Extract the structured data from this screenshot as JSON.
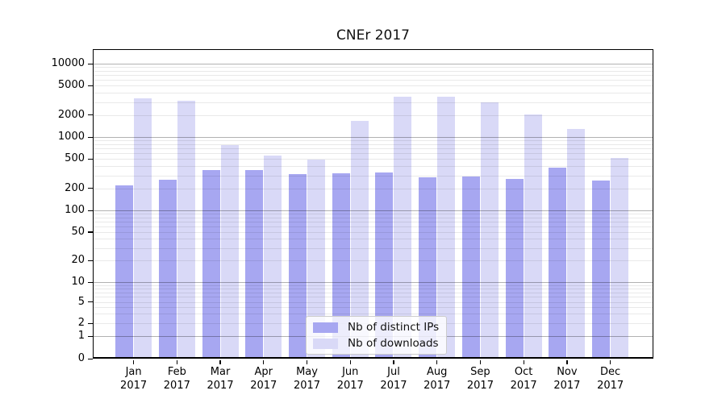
{
  "title": "CNEr 2017",
  "legend": {
    "items": [
      {
        "label": "Nb of distinct IPs",
        "color": "#a7a7f1"
      },
      {
        "label": "Nb of downloads",
        "color": "#d9d9f7"
      }
    ]
  },
  "chart_data": {
    "type": "bar",
    "title": "CNEr 2017",
    "xlabel": "",
    "ylabel": "",
    "y_scale": "log",
    "ylim": [
      0,
      10000
    ],
    "y_tick_labels": [
      0,
      1,
      2,
      5,
      10,
      20,
      50,
      100,
      200,
      500,
      1000,
      2000,
      5000,
      10000
    ],
    "grid": "on",
    "legend_position": "bottom-center",
    "categories": [
      "Jan 2017",
      "Feb 2017",
      "Mar 2017",
      "Apr 2017",
      "May 2017",
      "Jun 2017",
      "Jul 2017",
      "Aug 2017",
      "Sep 2017",
      "Oct 2017",
      "Nov 2017",
      "Dec 2017"
    ],
    "series": [
      {
        "name": "Nb of distinct IPs",
        "color": "#a7a7f1",
        "values": [
          220,
          260,
          355,
          350,
          310,
          320,
          330,
          280,
          290,
          265,
          380,
          255
        ]
      },
      {
        "name": "Nb of downloads",
        "color": "#d9d9f7",
        "values": [
          3350,
          3150,
          770,
          560,
          490,
          1650,
          3550,
          3550,
          2950,
          2030,
          1290,
          515
        ]
      }
    ]
  }
}
